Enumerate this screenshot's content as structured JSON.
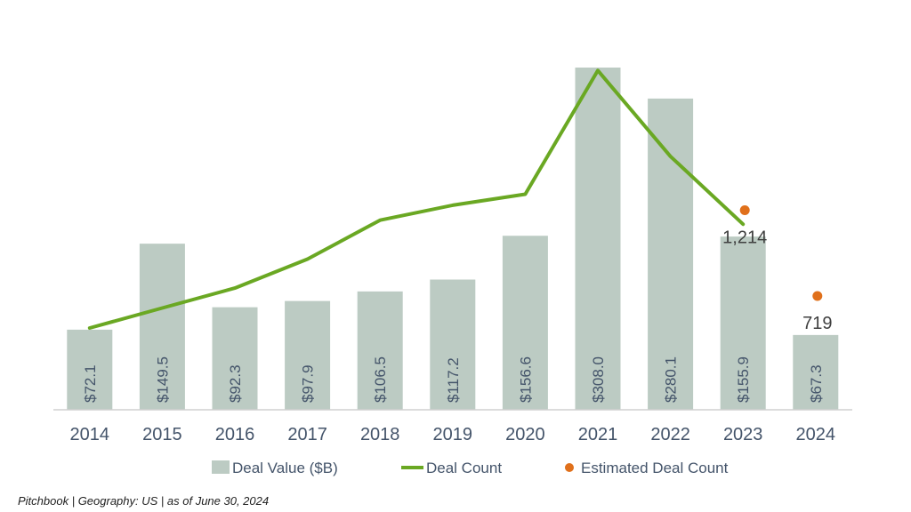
{
  "chart_data": {
    "type": "bar",
    "categories": [
      "2014",
      "2015",
      "2016",
      "2017",
      "2018",
      "2019",
      "2020",
      "2021",
      "2022",
      "2023",
      "2024"
    ],
    "series": [
      {
        "name": "Deal Value ($B)",
        "type": "bar",
        "values": [
          72.1,
          149.5,
          92.3,
          97.9,
          106.5,
          117.2,
          156.6,
          308.0,
          280.1,
          155.9,
          67.3
        ],
        "labels": [
          "$72.1",
          "$149.5",
          "$92.3",
          "$97.9",
          "$106.5",
          "$117.2",
          "$156.6",
          "$308.0",
          "$280.1",
          "$155.9",
          "$67.3"
        ],
        "color": "#bccbc3"
      },
      {
        "name": "Deal Count",
        "type": "line",
        "values": [
          1140,
          1240,
          1340,
          1485,
          1680,
          1755,
          1810,
          2430,
          2000,
          1660,
          null
        ],
        "color": "#6aa823"
      },
      {
        "name": "Estimated Deal Count",
        "type": "scatter",
        "values": [
          null,
          null,
          null,
          null,
          null,
          null,
          null,
          null,
          null,
          1730,
          1300
        ],
        "point_labels": [
          "",
          "",
          "",
          "",
          "",
          "",
          "",
          "",
          "",
          "1,214",
          "719"
        ],
        "color": "#e0701b"
      }
    ],
    "legend": {
      "position": "bottom",
      "items": [
        "Deal Value ($B)",
        "Deal Count",
        "Estimated Deal Count"
      ]
    },
    "grid": false
  },
  "footnote": "Pitchbook | Geography: US | as of June 30, 2024",
  "colors": {
    "bar": "#bccbc3",
    "line": "#6aa823",
    "estimate": "#e0701b",
    "axis": "#d0d0d0",
    "text": "#44546a"
  }
}
